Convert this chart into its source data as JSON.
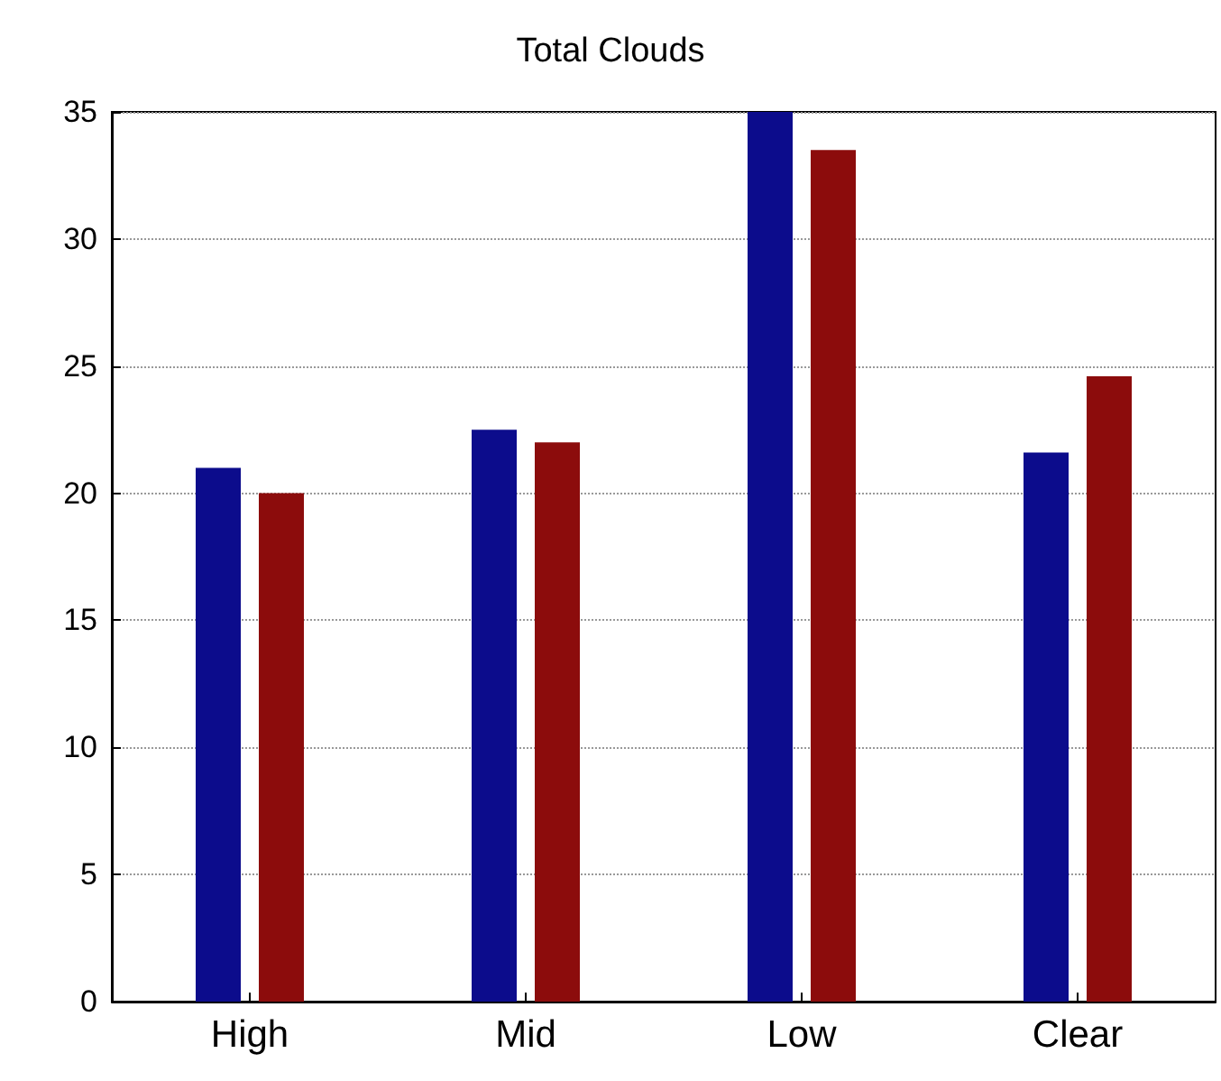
{
  "chart_data": {
    "type": "bar",
    "title": "Total Clouds",
    "categories": [
      "High",
      "Mid",
      "Low",
      "Clear"
    ],
    "series": [
      {
        "color": "#0c0c8c",
        "values": [
          21,
          22.5,
          35,
          21.6
        ]
      },
      {
        "color": "#8c0c0c",
        "values": [
          20,
          22,
          33.5,
          24.6
        ]
      }
    ],
    "ylim": [
      0,
      35
    ],
    "yticks": [
      0,
      5,
      10,
      15,
      20,
      25,
      30,
      35
    ],
    "grid": "y"
  }
}
